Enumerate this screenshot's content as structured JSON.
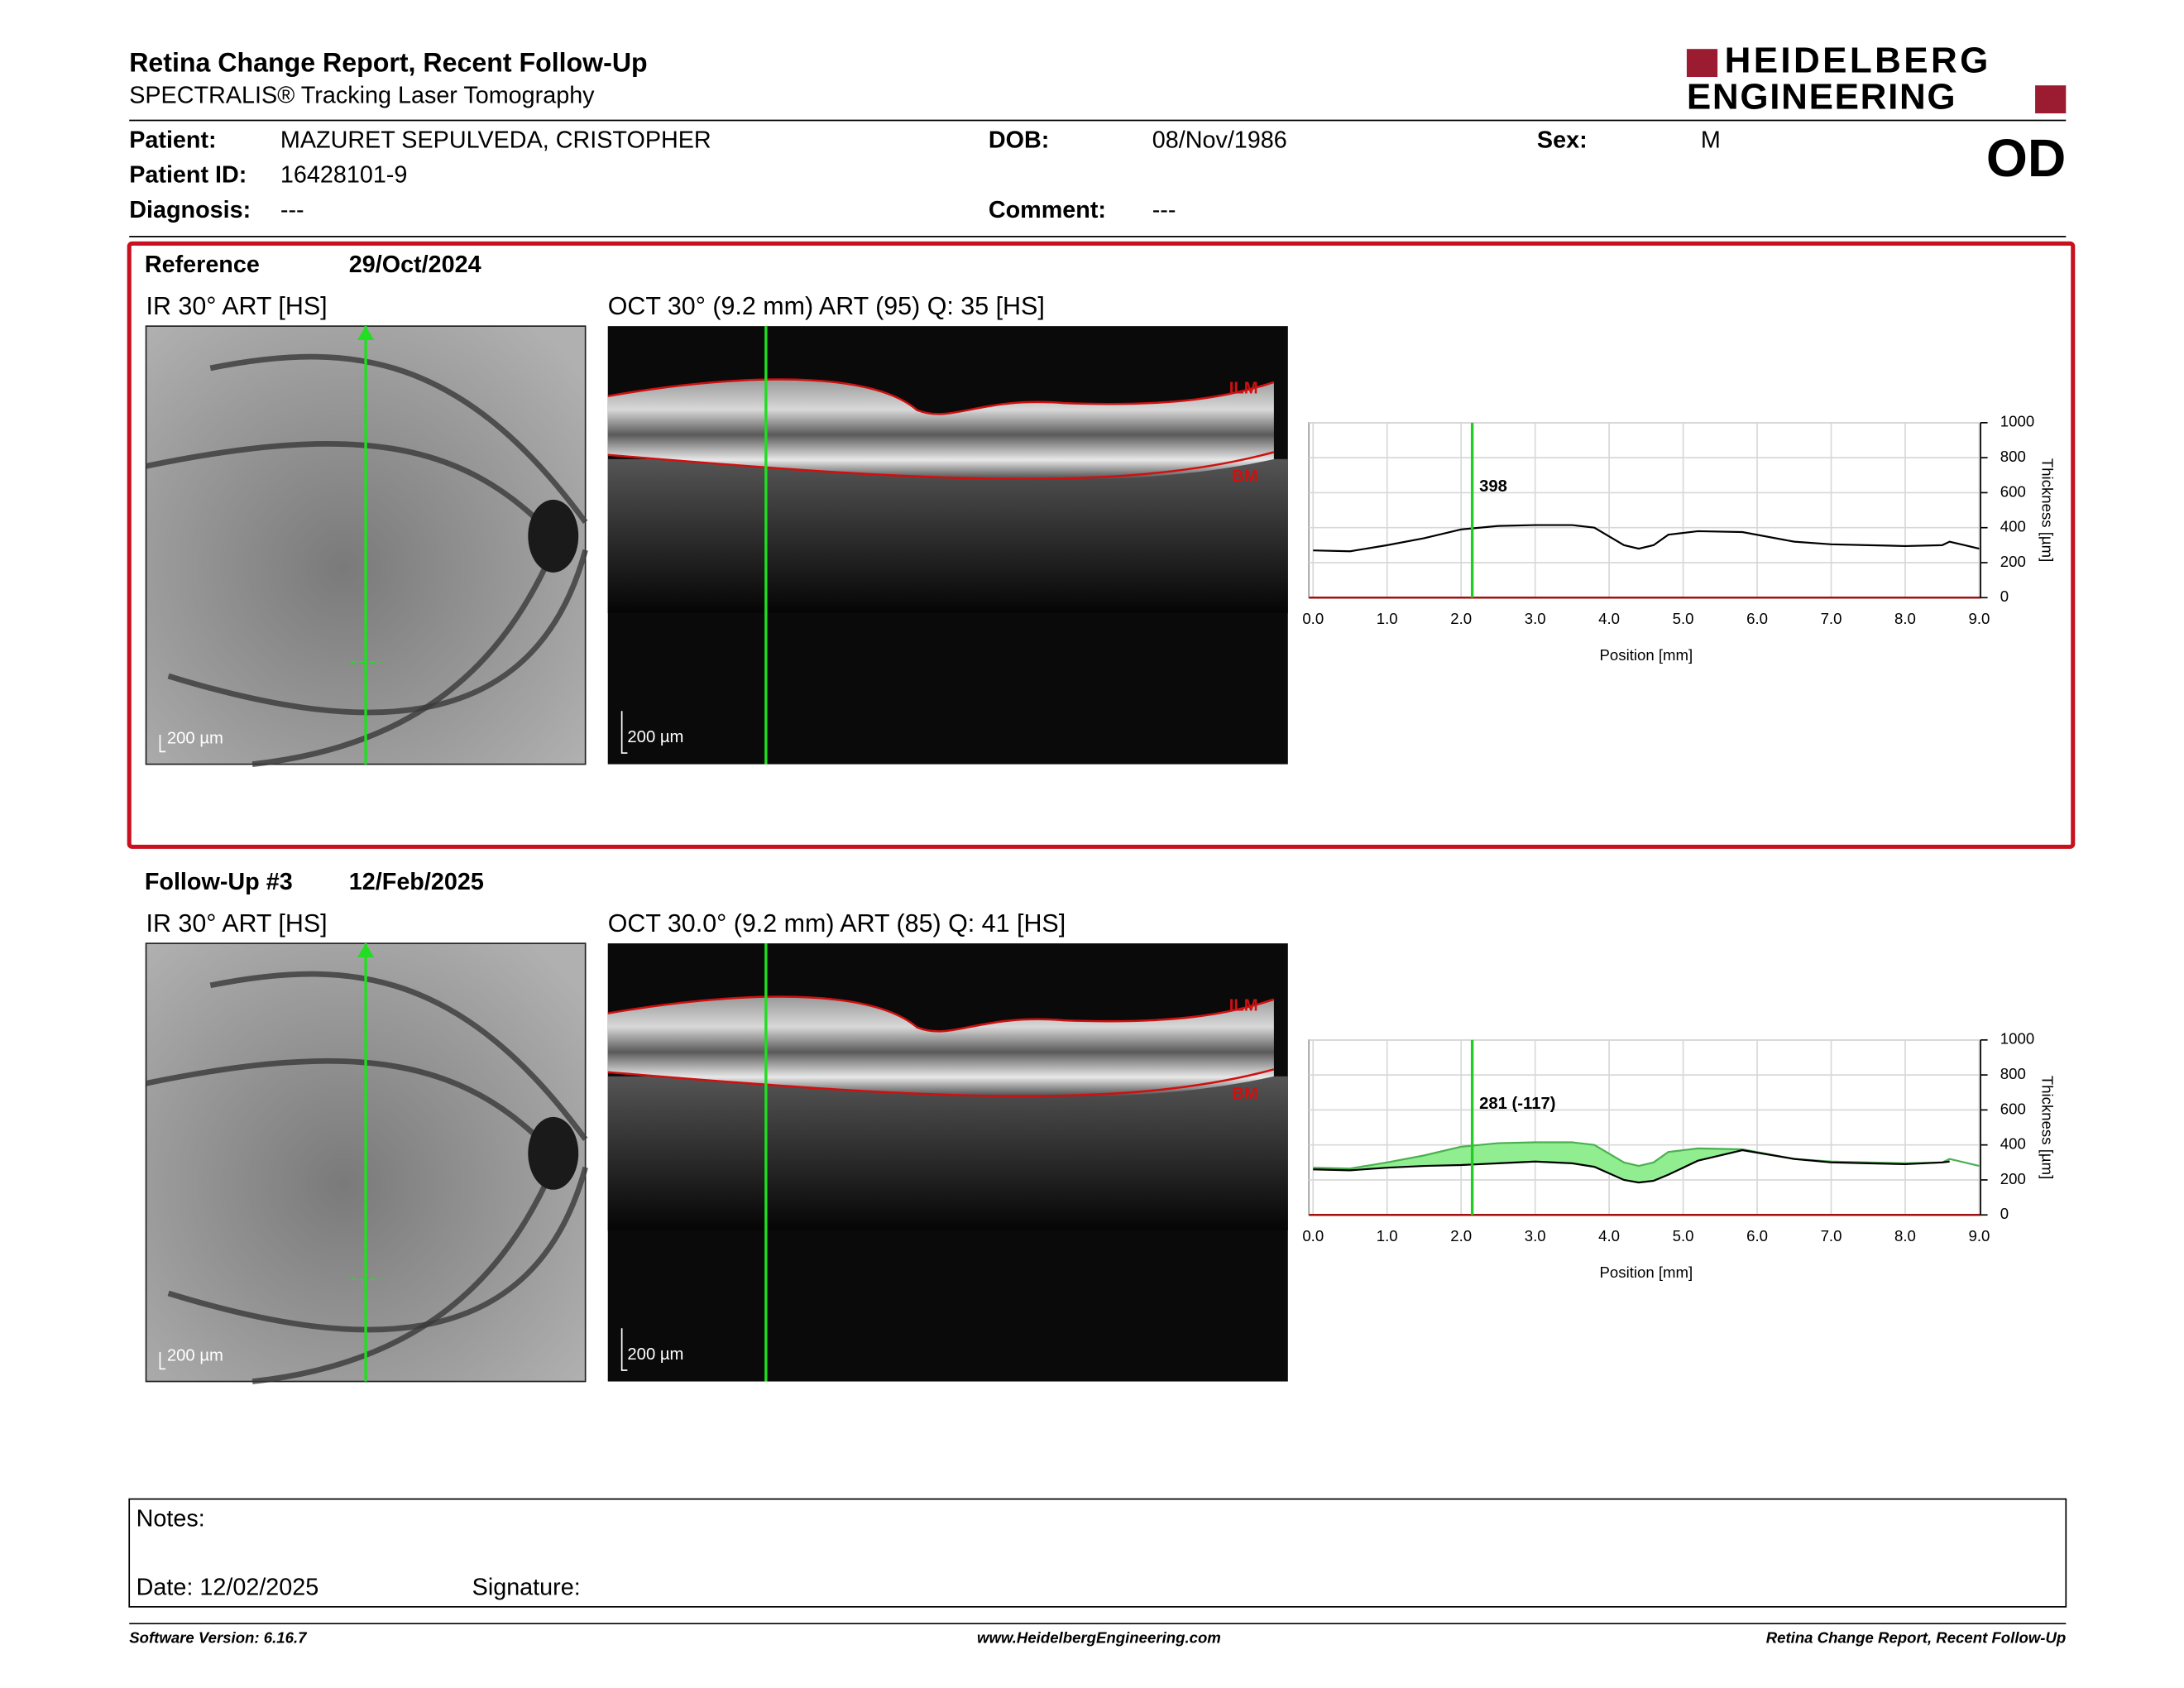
{
  "header": {
    "title": "Retina Change Report, Recent Follow-Up",
    "subtitle": "SPECTRALIS® Tracking Laser Tomography",
    "logo_line1": "HEIDELBERG",
    "logo_line2": "ENGINEERING",
    "eye": "OD"
  },
  "patient": {
    "name_label": "Patient:",
    "name": "MAZURET SEPULVEDA, CRISTOPHER",
    "id_label": "Patient ID:",
    "id": "16428101-9",
    "diagnosis_label": "Diagnosis:",
    "diagnosis": "---",
    "dob_label": "DOB:",
    "dob": "08/Nov/1986",
    "comment_label": "Comment:",
    "comment": "---",
    "sex_label": "Sex:",
    "sex": "M"
  },
  "exams": [
    {
      "label": "Reference",
      "date": "29/Oct/2024",
      "ir_title": "IR 30° ART [HS]",
      "oct_title": "OCT 30° (9.2 mm) ART (95) Q: 35 [HS]",
      "ilm": "ILM",
      "bm": "BM",
      "ir_scale": "200 µm",
      "oct_scale": "200 µm",
      "chart": {
        "type": "line",
        "x": [
          0,
          0.5,
          1,
          1.5,
          2,
          2.5,
          3,
          3.5,
          3.8,
          4.2,
          4.4,
          4.6,
          4.8,
          5.2,
          5.8,
          6.5,
          7,
          7.5,
          8,
          8.5,
          8.6,
          8.8,
          9
        ],
        "series": [
          {
            "color": "#000000",
            "values": [
              270,
              265,
              300,
              340,
              390,
              410,
              415,
              415,
              400,
              300,
              280,
              300,
              360,
              380,
              375,
              320,
              305,
              300,
              295,
              300,
              320,
              300,
              280
            ]
          }
        ],
        "xlim": [
          0,
          9
        ],
        "ylim": [
          0,
          1000
        ],
        "xticks": [
          {
            "value": 0,
            "label": "0.0"
          },
          {
            "value": 1,
            "label": "1.0"
          },
          {
            "value": 2,
            "label": "2.0"
          },
          {
            "value": 3,
            "label": "3.0"
          },
          {
            "value": 4,
            "label": "4.0"
          },
          {
            "value": 5,
            "label": "5.0"
          },
          {
            "value": 6,
            "label": "6.0"
          },
          {
            "value": 7,
            "label": "7.0"
          },
          {
            "value": 8,
            "label": "8.0"
          },
          {
            "value": 9,
            "label": "9.0"
          }
        ],
        "yticks": [
          0,
          200,
          400,
          600,
          800,
          1000
        ],
        "grid": true,
        "xlabel": "Position [mm]",
        "ylabel": "Thickness [µm]",
        "cursor_x": 2.15,
        "cursor_label": "398",
        "cursor_color": "#22cc22"
      }
    },
    {
      "label": "Follow-Up #3",
      "date": "12/Feb/2025",
      "ir_title": "IR 30° ART [HS]",
      "oct_title": "OCT 30.0° (9.2 mm) ART (85) Q: 41 [HS]",
      "ilm": "ILM",
      "bm": "BM",
      "ir_scale": "200 µm",
      "oct_scale": "200 µm",
      "chart": {
        "type": "line",
        "x": [
          0,
          0.5,
          1,
          1.5,
          2,
          2.5,
          3,
          3.5,
          3.8,
          4.2,
          4.4,
          4.6,
          4.8,
          5.2,
          5.8,
          6.5,
          7,
          7.5,
          8,
          8.5,
          8.6,
          8.8,
          9
        ],
        "series": [
          {
            "color": "#4caf50",
            "values": [
              270,
              265,
              300,
              340,
              390,
              410,
              415,
              415,
              400,
              300,
              280,
              300,
              360,
              380,
              375,
              320,
              305,
              300,
              295,
              300,
              320,
              300,
              280
            ]
          },
          {
            "color": "#000000",
            "values": [
              260,
              255,
              270,
              280,
              285,
              295,
              305,
              295,
              275,
              200,
              185,
              195,
              230,
              310,
              370,
              320,
              300,
              295,
              290,
              300,
              305,
              null,
              null
            ]
          }
        ],
        "fill_between": true,
        "fill_color": "#90ee90",
        "xlim": [
          0,
          9
        ],
        "ylim": [
          0,
          1000
        ],
        "xticks": [
          {
            "value": 0,
            "label": "0.0"
          },
          {
            "value": 1,
            "label": "1.0"
          },
          {
            "value": 2,
            "label": "2.0"
          },
          {
            "value": 3,
            "label": "3.0"
          },
          {
            "value": 4,
            "label": "4.0"
          },
          {
            "value": 5,
            "label": "5.0"
          },
          {
            "value": 6,
            "label": "6.0"
          },
          {
            "value": 7,
            "label": "7.0"
          },
          {
            "value": 8,
            "label": "8.0"
          },
          {
            "value": 9,
            "label": "9.0"
          }
        ],
        "yticks": [
          0,
          200,
          400,
          600,
          800,
          1000
        ],
        "grid": true,
        "xlabel": "Position [mm]",
        "ylabel": "Thickness [µm]",
        "cursor_x": 2.15,
        "cursor_label": "281 (-117)",
        "cursor_color": "#22cc22"
      }
    }
  ],
  "notes": {
    "label": "Notes:",
    "date": "Date: 12/02/2025",
    "signature": "Signature:"
  },
  "footer": {
    "left": "Software Version: 6.16.7",
    "center": "www.HeidelbergEngineering.com",
    "right": "Retina Change Report, Recent Follow-Up"
  }
}
